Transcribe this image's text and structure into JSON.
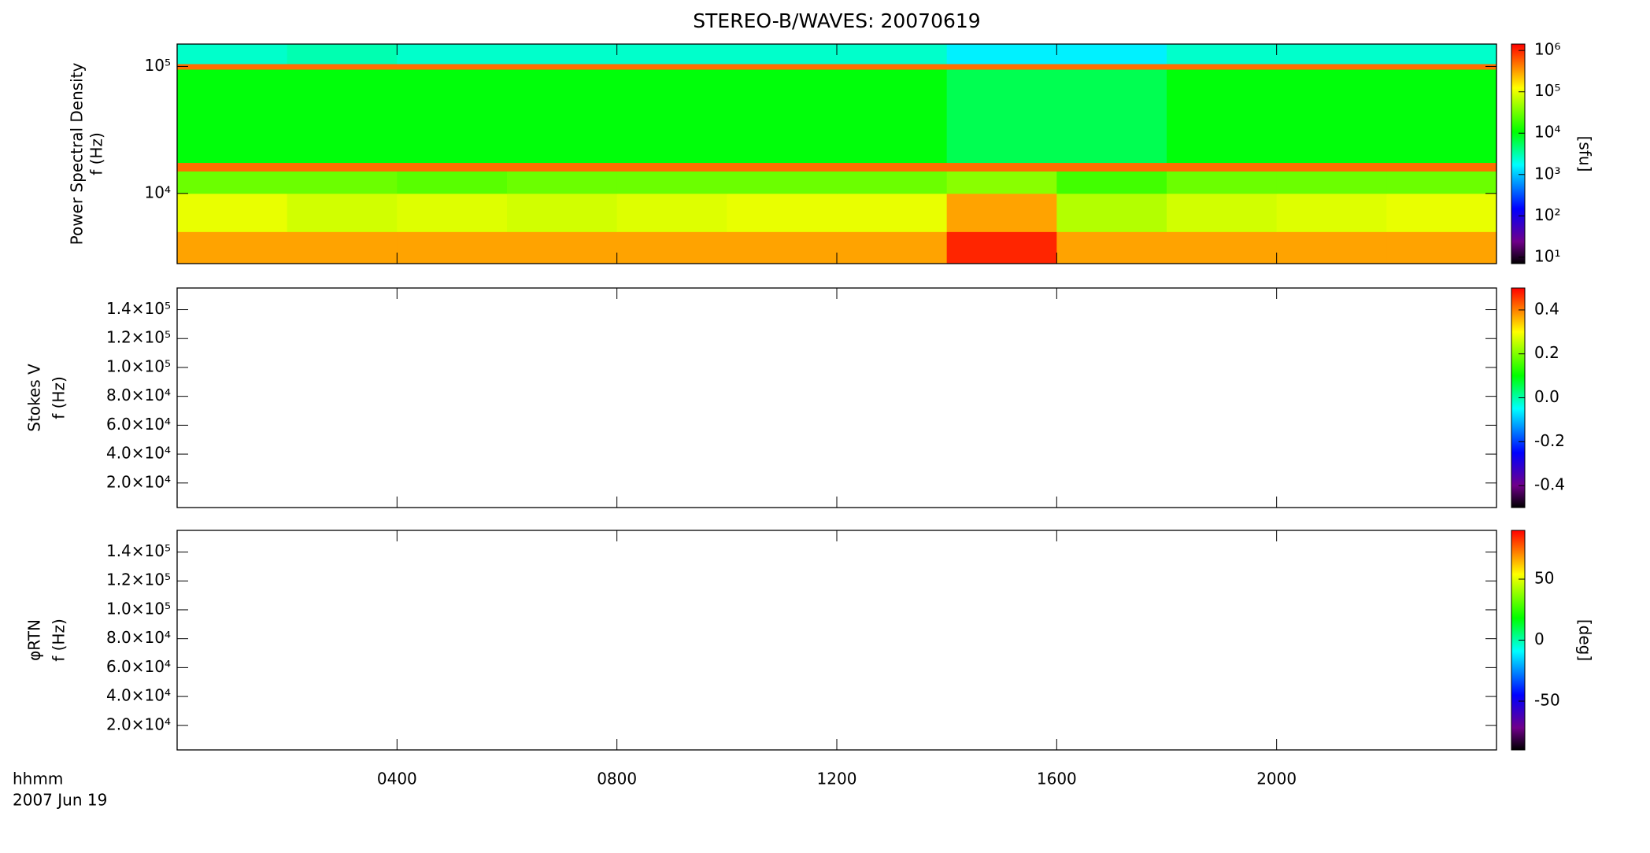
{
  "title": "STEREO-B/WAVES: 20070619",
  "chart_data": [
    {
      "type": "heatmap",
      "ylabel": [
        "Power Spectral Density",
        "f (Hz)"
      ],
      "ylog": true,
      "ylim": [
        2800,
        150000
      ],
      "yticks": [
        {
          "value": 10000,
          "label": "10⁴"
        },
        {
          "value": 100000,
          "label": "10⁵"
        }
      ],
      "xbins": [
        0,
        2,
        4,
        6,
        8,
        10,
        12,
        14,
        16,
        18,
        20,
        22,
        24
      ],
      "ybins": [
        2800,
        5000,
        10000,
        15000,
        17500,
        95000,
        105000,
        150000
      ],
      "z": [
        [
          300000,
          300000,
          300000,
          300000,
          300000,
          300000,
          300000,
          1000000,
          300000,
          300000,
          300000,
          300000
        ],
        [
          100000,
          80000,
          90000,
          80000,
          90000,
          100000,
          100000,
          300000,
          60000,
          80000,
          90000,
          100000
        ],
        [
          30000,
          30000,
          25000,
          30000,
          30000,
          30000,
          30000,
          40000,
          20000,
          30000,
          30000,
          30000
        ],
        [
          500000,
          500000,
          500000,
          500000,
          500000,
          500000,
          500000,
          500000,
          500000,
          500000,
          500000,
          500000
        ],
        [
          10000,
          10000,
          10000,
          10000,
          10000,
          10000,
          10000,
          6000,
          6000,
          10000,
          10000,
          10000
        ],
        [
          500000,
          500000,
          500000,
          500000,
          500000,
          500000,
          500000,
          500000,
          500000,
          500000,
          500000,
          500000
        ],
        [
          2500,
          3000,
          2500,
          2500,
          2500,
          2500,
          2500,
          1500,
          1500,
          2500,
          2500,
          2500
        ]
      ],
      "zlog": true,
      "zlim": [
        7,
        1430000
      ],
      "zticks": [
        {
          "value": 10,
          "label": "10¹"
        },
        {
          "value": 100,
          "label": "10²"
        },
        {
          "value": 1000,
          "label": "10³"
        },
        {
          "value": 10000,
          "label": "10⁴"
        },
        {
          "value": 100000,
          "label": "10⁵"
        },
        {
          "value": 1000000,
          "label": "10⁶"
        }
      ],
      "zlabel": "[sfu]",
      "colorscale": [
        [
          0,
          "#000000"
        ],
        [
          0.1,
          "#70008a"
        ],
        [
          0.25,
          "#0000ff"
        ],
        [
          0.45,
          "#00ffff"
        ],
        [
          0.6,
          "#00ff00"
        ],
        [
          0.8,
          "#ffff00"
        ],
        [
          1,
          "#ff0000"
        ]
      ]
    },
    {
      "type": "heatmap",
      "ylabel": [
        "Stokes V",
        "f (Hz)"
      ],
      "ylog": false,
      "ylim": [
        3000,
        155000
      ],
      "yticks": [
        {
          "value": 20000,
          "label": "2.0×10⁴"
        },
        {
          "value": 40000,
          "label": "4.0×10⁴"
        },
        {
          "value": 60000,
          "label": "6.0×10⁴"
        },
        {
          "value": 80000,
          "label": "8.0×10⁴"
        },
        {
          "value": 100000,
          "label": "1.0×10⁵"
        },
        {
          "value": 120000,
          "label": "1.2×10⁵"
        },
        {
          "value": 140000,
          "label": "1.4×10⁵"
        }
      ],
      "zlog": false,
      "zlim": [
        -0.5,
        0.5
      ],
      "zticks": [
        -0.4,
        -0.2,
        {
          "value": 0,
          "label": "0.0"
        },
        0.2,
        0.4
      ],
      "colorscale": [
        [
          0,
          "#000000"
        ],
        [
          0.1,
          "#70008a"
        ],
        [
          0.25,
          "#0000ff"
        ],
        [
          0.45,
          "#00ffff"
        ],
        [
          0.6,
          "#00ff00"
        ],
        [
          0.8,
          "#ffff00"
        ],
        [
          1,
          "#ff0000"
        ]
      ]
    },
    {
      "type": "heatmap",
      "ylabel": [
        "φRTN",
        "f (Hz)"
      ],
      "ylog": false,
      "ylim": [
        3000,
        155000
      ],
      "yticks": [
        {
          "value": 20000,
          "label": "2.0×10⁴"
        },
        {
          "value": 40000,
          "label": "4.0×10⁴"
        },
        {
          "value": 60000,
          "label": "6.0×10⁴"
        },
        {
          "value": 80000,
          "label": "8.0×10⁴"
        },
        {
          "value": 100000,
          "label": "1.0×10⁵"
        },
        {
          "value": 120000,
          "label": "1.2×10⁵"
        },
        {
          "value": 140000,
          "label": "1.4×10⁵"
        }
      ],
      "zlog": false,
      "zlim": [
        -90,
        90
      ],
      "zticks": [
        -50,
        0,
        50
      ],
      "zlabel": "[deg]",
      "colorscale": [
        [
          0,
          "#000000"
        ],
        [
          0.1,
          "#70008a"
        ],
        [
          0.25,
          "#0000ff"
        ],
        [
          0.45,
          "#00ffff"
        ],
        [
          0.6,
          "#00ff00"
        ],
        [
          0.8,
          "#ffff00"
        ],
        [
          1,
          "#ff0000"
        ]
      ],
      "xlabel": "hhmm",
      "date": "2007 Jun 19",
      "xlim": [
        0,
        24
      ],
      "xticks": [
        {
          "value": 4,
          "label": "0400"
        },
        {
          "value": 8,
          "label": "0800"
        },
        {
          "value": 12,
          "label": "1200"
        },
        {
          "value": 16,
          "label": "1600"
        },
        {
          "value": 20,
          "label": "2000"
        }
      ]
    }
  ]
}
